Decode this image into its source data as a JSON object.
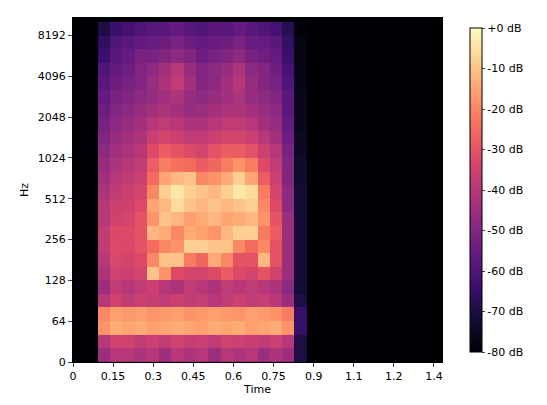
{
  "chart_data": {
    "type": "heatmap",
    "x_label": "Time",
    "y_label": "Hz",
    "log": "y",
    "grid": false,
    "times": [
      0.023,
      0.069,
      0.115,
      0.161,
      0.207,
      0.253,
      0.299,
      0.345,
      0.391,
      0.437,
      0.483,
      0.529,
      0.575,
      0.621,
      0.667,
      0.713,
      0.759,
      0.805,
      0.851,
      0.897,
      0.943,
      0.989,
      1.035,
      1.081,
      1.127,
      1.173,
      1.219,
      1.265,
      1.311,
      1.357,
      1.403
    ],
    "frequencies": [
      11,
      32,
      53,
      72,
      91,
      114,
      144,
      181,
      228,
      287,
      362,
      456,
      575,
      724,
      912,
      1149,
      1448,
      1825,
      2299,
      2896,
      3649,
      4598,
      5793,
      7298,
      9195
    ],
    "cells": [
      [
        -80,
        -80,
        -45,
        -40,
        -40,
        -42,
        -40,
        -45,
        -40,
        -42,
        -40,
        -45,
        -40,
        -42,
        -40,
        -45,
        -42,
        -45,
        -70,
        -80,
        -80,
        -80,
        -80,
        -80,
        -80,
        -80,
        -80,
        -80,
        -80,
        -80,
        -80
      ],
      [
        -80,
        -80,
        -40,
        -35,
        -35,
        -38,
        -36,
        -38,
        -35,
        -37,
        -36,
        -38,
        -35,
        -36,
        -37,
        -38,
        -36,
        -40,
        -70,
        -80,
        -80,
        -80,
        -80,
        -80,
        -80,
        -80,
        -80,
        -80,
        -80,
        -80,
        -80
      ],
      [
        -80,
        -80,
        -18,
        -14,
        -15,
        -14,
        -16,
        -15,
        -14,
        -15,
        -16,
        -14,
        -15,
        -14,
        -16,
        -15,
        -14,
        -18,
        -65,
        -80,
        -80,
        -80,
        -80,
        -80,
        -80,
        -80,
        -80,
        -80,
        -80,
        -80,
        -80
      ],
      [
        -80,
        -80,
        -20,
        -16,
        -17,
        -16,
        -18,
        -17,
        -16,
        -18,
        -17,
        -16,
        -17,
        -18,
        -16,
        -17,
        -18,
        -22,
        -65,
        -80,
        -80,
        -80,
        -80,
        -80,
        -80,
        -80,
        -80,
        -80,
        -80,
        -80,
        -80
      ],
      [
        -80,
        -80,
        -40,
        -35,
        -38,
        -36,
        -37,
        -38,
        -36,
        -38,
        -37,
        -40,
        -38,
        -36,
        -38,
        -37,
        -40,
        -45,
        -70,
        -80,
        -80,
        -80,
        -80,
        -80,
        -80,
        -80,
        -80,
        -80,
        -80,
        -80,
        -80
      ],
      [
        -80,
        -80,
        -45,
        -38,
        -40,
        -38,
        -36,
        -40,
        -42,
        -38,
        -40,
        -42,
        -38,
        -40,
        -38,
        -40,
        -42,
        -48,
        -72,
        -80,
        -80,
        -80,
        -80,
        -80,
        -80,
        -80,
        -80,
        -80,
        -80,
        -80,
        -80
      ],
      [
        -80,
        -80,
        -42,
        -35,
        -36,
        -34,
        -10,
        -18,
        -32,
        -34,
        -34,
        -32,
        -28,
        -32,
        -34,
        -30,
        -35,
        -45,
        -72,
        -80,
        -80,
        -80,
        -80,
        -80,
        -80,
        -80,
        -80,
        -80,
        -80,
        -80,
        -80
      ],
      [
        -80,
        -80,
        -40,
        -33,
        -34,
        -32,
        -20,
        -10,
        -10,
        -22,
        -26,
        -14,
        -20,
        -30,
        -30,
        -12,
        -30,
        -45,
        -72,
        -80,
        -80,
        -80,
        -80,
        -80,
        -80,
        -80,
        -80,
        -80,
        -80,
        -80,
        -80
      ],
      [
        -80,
        -80,
        -38,
        -32,
        -33,
        -30,
        -25,
        -20,
        -18,
        -8,
        -8,
        -10,
        -10,
        -20,
        -25,
        -20,
        -30,
        -45,
        -72,
        -80,
        -80,
        -80,
        -80,
        -80,
        -80,
        -80,
        -80,
        -80,
        -80,
        -80,
        -80
      ],
      [
        -80,
        -80,
        -38,
        -33,
        -32,
        -30,
        -12,
        -14,
        -20,
        -14,
        -16,
        -18,
        -12,
        -8,
        -8,
        -22,
        -28,
        -45,
        -72,
        -80,
        -80,
        -80,
        -80,
        -80,
        -80,
        -80,
        -80,
        -80,
        -80,
        -80,
        -80
      ],
      [
        -80,
        -80,
        -40,
        -35,
        -34,
        -30,
        -18,
        -10,
        -12,
        -16,
        -14,
        -12,
        -15,
        -14,
        -12,
        -18,
        -30,
        -45,
        -72,
        -80,
        -80,
        -80,
        -80,
        -80,
        -80,
        -80,
        -80,
        -80,
        -80,
        -80,
        -80
      ],
      [
        -80,
        -80,
        -40,
        -36,
        -35,
        -32,
        -15,
        -12,
        -6,
        -10,
        -12,
        -10,
        -12,
        -10,
        -8,
        -20,
        -32,
        -48,
        -72,
        -80,
        -80,
        -80,
        -80,
        -80,
        -80,
        -80,
        -80,
        -80,
        -80,
        -80,
        -80
      ],
      [
        -80,
        -80,
        -42,
        -38,
        -36,
        -34,
        -20,
        -8,
        -4,
        -8,
        -10,
        -12,
        -8,
        -4,
        -6,
        -22,
        -34,
        -48,
        -72,
        -80,
        -80,
        -80,
        -80,
        -80,
        -80,
        -80,
        -80,
        -80,
        -80,
        -80,
        -80
      ],
      [
        -80,
        -80,
        -44,
        -40,
        -38,
        -36,
        -25,
        -15,
        -12,
        -10,
        -20,
        -18,
        -14,
        -8,
        -15,
        -28,
        -36,
        -50,
        -74,
        -80,
        -80,
        -80,
        -80,
        -80,
        -80,
        -80,
        -80,
        -80,
        -80,
        -80,
        -80
      ],
      [
        -80,
        -80,
        -46,
        -42,
        -40,
        -38,
        -28,
        -22,
        -24,
        -25,
        -28,
        -26,
        -22,
        -18,
        -22,
        -32,
        -38,
        -50,
        -74,
        -80,
        -80,
        -80,
        -80,
        -80,
        -80,
        -80,
        -80,
        -80,
        -80,
        -80,
        -80
      ],
      [
        -80,
        -80,
        -48,
        -44,
        -42,
        -40,
        -32,
        -28,
        -30,
        -32,
        -34,
        -30,
        -28,
        -28,
        -30,
        -36,
        -40,
        -52,
        -75,
        -80,
        -80,
        -80,
        -80,
        -80,
        -80,
        -80,
        -80,
        -80,
        -80,
        -80,
        -80
      ],
      [
        -80,
        -80,
        -50,
        -46,
        -44,
        -42,
        -36,
        -34,
        -36,
        -38,
        -38,
        -36,
        -34,
        -34,
        -36,
        -40,
        -44,
        -54,
        -75,
        -80,
        -80,
        -80,
        -80,
        -80,
        -80,
        -80,
        -80,
        -80,
        -80,
        -80,
        -80
      ],
      [
        -80,
        -80,
        -52,
        -48,
        -46,
        -44,
        -40,
        -38,
        -40,
        -42,
        -42,
        -40,
        -38,
        -38,
        -40,
        -44,
        -46,
        -56,
        -76,
        -80,
        -80,
        -80,
        -80,
        -80,
        -80,
        -80,
        -80,
        -80,
        -80,
        -80,
        -80
      ],
      [
        -80,
        -80,
        -54,
        -50,
        -48,
        -46,
        -44,
        -42,
        -44,
        -46,
        -45,
        -44,
        -42,
        -42,
        -44,
        -46,
        -48,
        -58,
        -76,
        -80,
        -80,
        -80,
        -80,
        -80,
        -80,
        -80,
        -80,
        -80,
        -80,
        -80,
        -80
      ],
      [
        -80,
        -80,
        -56,
        -52,
        -50,
        -48,
        -46,
        -44,
        -42,
        -46,
        -48,
        -46,
        -44,
        -42,
        -46,
        -48,
        -50,
        -58,
        -76,
        -80,
        -80,
        -80,
        -80,
        -80,
        -80,
        -80,
        -80,
        -80,
        -80,
        -80,
        -80
      ],
      [
        -80,
        -80,
        -58,
        -54,
        -52,
        -50,
        -46,
        -42,
        -38,
        -44,
        -50,
        -48,
        -44,
        -40,
        -46,
        -50,
        -52,
        -60,
        -77,
        -80,
        -80,
        -80,
        -80,
        -80,
        -80,
        -80,
        -80,
        -80,
        -80,
        -80,
        -80
      ],
      [
        -80,
        -80,
        -60,
        -56,
        -54,
        -50,
        -48,
        -44,
        -40,
        -46,
        -50,
        -48,
        -46,
        -42,
        -48,
        -50,
        -54,
        -62,
        -77,
        -80,
        -80,
        -80,
        -80,
        -80,
        -80,
        -80,
        -80,
        -80,
        -80,
        -80,
        -80
      ],
      [
        -80,
        -80,
        -64,
        -58,
        -56,
        -52,
        -52,
        -50,
        -48,
        -50,
        -54,
        -52,
        -50,
        -48,
        -52,
        -54,
        -56,
        -64,
        -78,
        -80,
        -80,
        -80,
        -80,
        -80,
        -80,
        -80,
        -80,
        -80,
        -80,
        -80,
        -80
      ],
      [
        -80,
        -80,
        -66,
        -60,
        -58,
        -56,
        -55,
        -54,
        -52,
        -54,
        -56,
        -55,
        -54,
        -52,
        -55,
        -56,
        -58,
        -66,
        -78,
        -80,
        -80,
        -80,
        -80,
        -80,
        -80,
        -80,
        -80,
        -80,
        -80,
        -80,
        -80
      ],
      [
        -80,
        -80,
        -70,
        -64,
        -62,
        -60,
        -58,
        -58,
        -56,
        -58,
        -60,
        -58,
        -58,
        -56,
        -58,
        -60,
        -62,
        -68,
        -79,
        -80,
        -80,
        -80,
        -80,
        -80,
        -80,
        -80,
        -80,
        -80,
        -80,
        -80,
        -80
      ]
    ],
    "xlim": [
      0,
      1.38
    ],
    "xticks": [
      0,
      0.15,
      0.3,
      0.45,
      0.6,
      0.75,
      0.9,
      {
        "value": 1.05,
        "label": "1.1"
      },
      1.2,
      {
        "value": 1.35,
        "label": "1.4"
      }
    ],
    "ylim": [
      0,
      11025
    ],
    "yticks": [
      0,
      64,
      128,
      256,
      512,
      1024,
      2048,
      4096,
      8192
    ],
    "colorbar": {
      "range": [
        -80,
        0
      ],
      "ticks": [
        {
          "value": 0,
          "label": "+0 dB"
        },
        {
          "value": -10,
          "label": "-10 dB"
        },
        {
          "value": -20,
          "label": "-20 dB"
        },
        {
          "value": -30,
          "label": "-30 dB"
        },
        {
          "value": -40,
          "label": "-40 dB"
        },
        {
          "value": -50,
          "label": "-50 dB"
        },
        {
          "value": -60,
          "label": "-60 dB"
        },
        {
          "value": -70,
          "label": "-70 dB"
        },
        {
          "value": -80,
          "label": "-80 dB"
        }
      ]
    }
  }
}
